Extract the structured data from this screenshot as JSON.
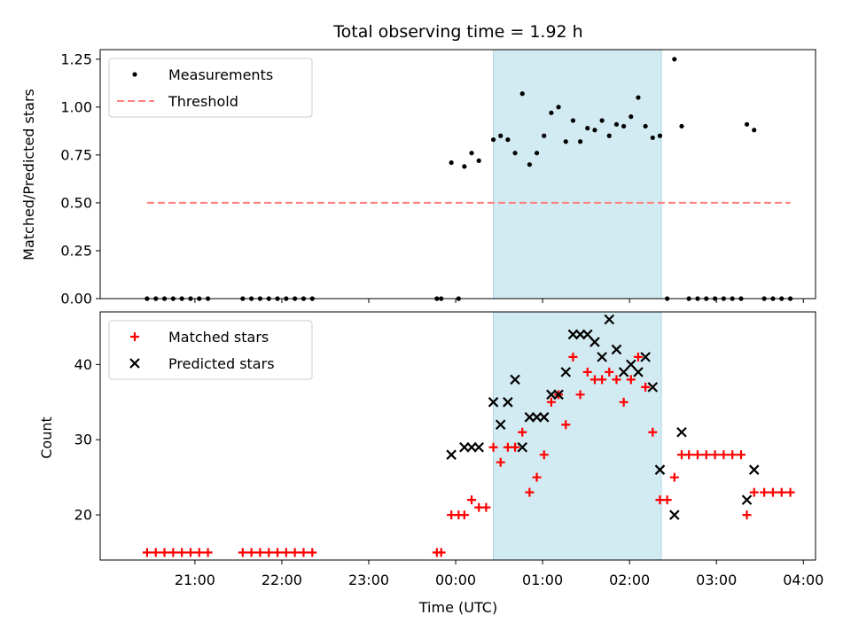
{
  "chart_data": {
    "type": "scatter",
    "title": "Total observing time = 1.92 h",
    "xlabel": "Time (UTC)",
    "x_ticks": [
      "21:00",
      "22:00",
      "23:00",
      "00:00",
      "01:00",
      "02:00",
      "03:00",
      "04:00"
    ],
    "highlight_span": {
      "x_start": "00:26",
      "x_end": "02:22",
      "color": "#add8e6"
    },
    "panels": [
      {
        "ylabel": "Matched/Predicted stars",
        "ylim": [
          0,
          1.3
        ],
        "y_ticks": [
          "0.00",
          "0.25",
          "0.50",
          "0.75",
          "1.00",
          "1.25"
        ],
        "legend_position": "upper-left",
        "series": [
          {
            "name": "Measurements",
            "kind": "points",
            "color": "#000000",
            "points": [
              [
                "20:27",
                0
              ],
              [
                "20:33",
                0
              ],
              [
                "20:39",
                0
              ],
              [
                "20:45",
                0
              ],
              [
                "20:51",
                0
              ],
              [
                "20:57",
                0
              ],
              [
                "21:03",
                0
              ],
              [
                "21:09",
                0
              ],
              [
                "21:33",
                0
              ],
              [
                "21:39",
                0
              ],
              [
                "21:45",
                0
              ],
              [
                "21:51",
                0
              ],
              [
                "21:57",
                0
              ],
              [
                "22:03",
                0
              ],
              [
                "22:09",
                0
              ],
              [
                "22:15",
                0
              ],
              [
                "22:21",
                0
              ],
              [
                "23:47",
                0
              ],
              [
                "23:50",
                0
              ],
              [
                "00:02",
                0
              ],
              [
                "23:57",
                0.71
              ],
              [
                "00:06",
                0.69
              ],
              [
                "00:11",
                0.76
              ],
              [
                "00:16",
                0.72
              ],
              [
                "00:26",
                0.83
              ],
              [
                "00:31",
                0.85
              ],
              [
                "00:36",
                0.83
              ],
              [
                "00:41",
                0.76
              ],
              [
                "00:46",
                1.07
              ],
              [
                "00:51",
                0.7
              ],
              [
                "00:56",
                0.76
              ],
              [
                "01:01",
                0.85
              ],
              [
                "01:06",
                0.97
              ],
              [
                "01:11",
                1.0
              ],
              [
                "01:16",
                0.82
              ],
              [
                "01:21",
                0.93
              ],
              [
                "01:26",
                0.82
              ],
              [
                "01:31",
                0.89
              ],
              [
                "01:36",
                0.88
              ],
              [
                "01:41",
                0.93
              ],
              [
                "01:46",
                0.85
              ],
              [
                "01:51",
                0.91
              ],
              [
                "01:56",
                0.9
              ],
              [
                "02:01",
                0.95
              ],
              [
                "02:06",
                1.05
              ],
              [
                "02:11",
                0.9
              ],
              [
                "02:16",
                0.84
              ],
              [
                "02:21",
                0.85
              ],
              [
                "02:26",
                0
              ],
              [
                "02:31",
                1.25
              ],
              [
                "02:36",
                0.9
              ],
              [
                "02:41",
                0
              ],
              [
                "02:47",
                0
              ],
              [
                "02:53",
                0
              ],
              [
                "02:59",
                0
              ],
              [
                "03:05",
                0
              ],
              [
                "03:11",
                0
              ],
              [
                "03:17",
                0
              ],
              [
                "03:21",
                0.91
              ],
              [
                "03:26",
                0.88
              ],
              [
                "03:33",
                0
              ],
              [
                "03:39",
                0
              ],
              [
                "03:45",
                0
              ],
              [
                "03:51",
                0
              ]
            ]
          },
          {
            "name": "Threshold",
            "kind": "dashed-line",
            "color": "#ff7f7f",
            "points": [
              [
                "20:27",
                0.5
              ],
              [
                "03:51",
                0.5
              ]
            ]
          }
        ]
      },
      {
        "ylabel": "Count",
        "ylim": [
          14,
          47
        ],
        "y_ticks": [
          "20",
          "30",
          "40"
        ],
        "legend_position": "upper-left",
        "series": [
          {
            "name": "Matched stars",
            "kind": "plus",
            "color": "#ff0000",
            "points": [
              [
                "20:27",
                15
              ],
              [
                "20:33",
                15
              ],
              [
                "20:39",
                15
              ],
              [
                "20:45",
                15
              ],
              [
                "20:51",
                15
              ],
              [
                "20:57",
                15
              ],
              [
                "21:03",
                15
              ],
              [
                "21:09",
                15
              ],
              [
                "21:33",
                15
              ],
              [
                "21:39",
                15
              ],
              [
                "21:45",
                15
              ],
              [
                "21:51",
                15
              ],
              [
                "21:57",
                15
              ],
              [
                "22:03",
                15
              ],
              [
                "22:09",
                15
              ],
              [
                "22:15",
                15
              ],
              [
                "22:21",
                15
              ],
              [
                "23:47",
                15
              ],
              [
                "23:50",
                15
              ],
              [
                "23:57",
                20
              ],
              [
                "00:02",
                20
              ],
              [
                "00:06",
                20
              ],
              [
                "00:11",
                22
              ],
              [
                "00:16",
                21
              ],
              [
                "00:21",
                21
              ],
              [
                "00:26",
                29
              ],
              [
                "00:31",
                27
              ],
              [
                "00:36",
                29
              ],
              [
                "00:41",
                29
              ],
              [
                "00:46",
                31
              ],
              [
                "00:51",
                23
              ],
              [
                "00:56",
                25
              ],
              [
                "01:01",
                28
              ],
              [
                "01:06",
                35
              ],
              [
                "01:11",
                36
              ],
              [
                "01:16",
                32
              ],
              [
                "01:21",
                41
              ],
              [
                "01:26",
                36
              ],
              [
                "01:31",
                39
              ],
              [
                "01:36",
                38
              ],
              [
                "01:41",
                38
              ],
              [
                "01:46",
                39
              ],
              [
                "01:51",
                38
              ],
              [
                "01:56",
                35
              ],
              [
                "02:01",
                38
              ],
              [
                "02:06",
                41
              ],
              [
                "02:11",
                37
              ],
              [
                "02:16",
                31
              ],
              [
                "02:21",
                22
              ],
              [
                "02:26",
                22
              ],
              [
                "02:31",
                25
              ],
              [
                "02:36",
                28
              ],
              [
                "02:41",
                28
              ],
              [
                "02:47",
                28
              ],
              [
                "02:53",
                28
              ],
              [
                "02:59",
                28
              ],
              [
                "03:05",
                28
              ],
              [
                "03:11",
                28
              ],
              [
                "03:17",
                28
              ],
              [
                "03:21",
                20
              ],
              [
                "03:26",
                23
              ],
              [
                "03:33",
                23
              ],
              [
                "03:39",
                23
              ],
              [
                "03:45",
                23
              ],
              [
                "03:51",
                23
              ]
            ]
          },
          {
            "name": "Predicted stars",
            "kind": "x",
            "color": "#000000",
            "points": [
              [
                "23:57",
                28
              ],
              [
                "00:06",
                29
              ],
              [
                "00:11",
                29
              ],
              [
                "00:16",
                29
              ],
              [
                "00:26",
                35
              ],
              [
                "00:31",
                32
              ],
              [
                "00:36",
                35
              ],
              [
                "00:41",
                38
              ],
              [
                "00:46",
                29
              ],
              [
                "00:51",
                33
              ],
              [
                "00:56",
                33
              ],
              [
                "01:01",
                33
              ],
              [
                "01:06",
                36
              ],
              [
                "01:11",
                36
              ],
              [
                "01:16",
                39
              ],
              [
                "01:21",
                44
              ],
              [
                "01:26",
                44
              ],
              [
                "01:31",
                44
              ],
              [
                "01:36",
                43
              ],
              [
                "01:41",
                41
              ],
              [
                "01:46",
                46
              ],
              [
                "01:51",
                42
              ],
              [
                "01:56",
                39
              ],
              [
                "02:01",
                40
              ],
              [
                "02:06",
                39
              ],
              [
                "02:11",
                41
              ],
              [
                "02:16",
                37
              ],
              [
                "02:21",
                26
              ],
              [
                "02:31",
                20
              ],
              [
                "02:36",
                31
              ],
              [
                "03:21",
                22
              ],
              [
                "03:26",
                26
              ]
            ]
          }
        ]
      }
    ]
  }
}
